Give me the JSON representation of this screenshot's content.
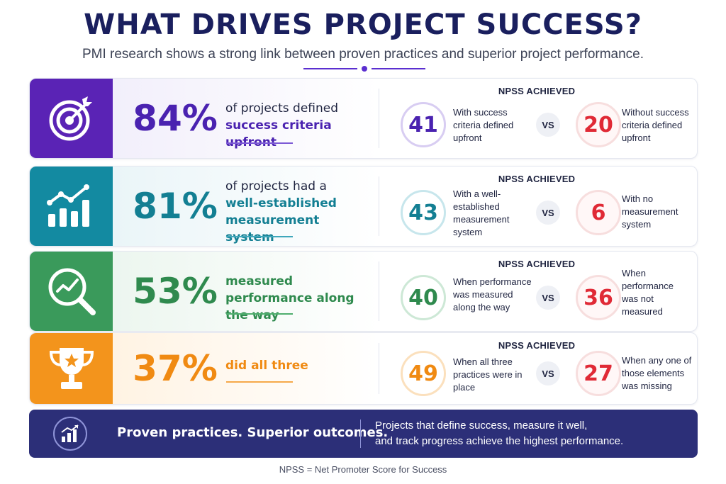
{
  "header": {
    "title": "WHAT DRIVES PROJECT SUCCESS?",
    "subtitle": "PMI research shows a strong link between proven practices and superior project performance."
  },
  "colors": {
    "purple": "#5a23b5",
    "teal": "#138aa1",
    "green": "#3a9a5b",
    "orange": "#f3941c",
    "red": "#e02a36",
    "navy": "#2c2f78"
  },
  "rows": [
    {
      "icon": "target-icon",
      "percent": "84%",
      "desc_plain": "of projects defined",
      "desc_highlight": "success criteria upfront",
      "npss_heading": "NPSS ACHIEVED",
      "score_with": "41",
      "label_with": "With success criteria defined upfront",
      "vs": "VS",
      "score_without": "20",
      "label_without": "Without success criteria defined upfront"
    },
    {
      "icon": "bar-chart-trend-icon",
      "percent": "81%",
      "desc_plain": "of projects had a",
      "desc_highlight": "well-established measurement system",
      "npss_heading": "NPSS ACHIEVED",
      "score_with": "43",
      "label_with": "With a well-established measurement system",
      "vs": "VS",
      "score_without": "6",
      "label_without": "With no measurement system"
    },
    {
      "icon": "magnifier-trend-icon",
      "percent": "53%",
      "desc_plain": "",
      "desc_highlight": "measured performance along the way",
      "npss_heading": "NPSS ACHIEVED",
      "score_with": "40",
      "label_with": "When performance was measured along the way",
      "vs": "VS",
      "score_without": "36",
      "label_without": "When performance was not measured"
    },
    {
      "icon": "trophy-icon",
      "percent": "37%",
      "desc_plain": "",
      "desc_highlight": "did all three",
      "npss_heading": "NPSS ACHIEVED",
      "score_with": "49",
      "label_with": "When all three practices were in place",
      "vs": "VS",
      "score_without": "27",
      "label_without": "When any one of those elements was missing"
    }
  ],
  "footer": {
    "icon": "growth-chart-icon",
    "slogan": "Proven practices. Superior outcomes.",
    "message_line1": "Projects that define success, measure it well,",
    "message_line2": "and track progress achieve the highest performance.",
    "note": "NPSS = Net Promoter Score for Success"
  }
}
